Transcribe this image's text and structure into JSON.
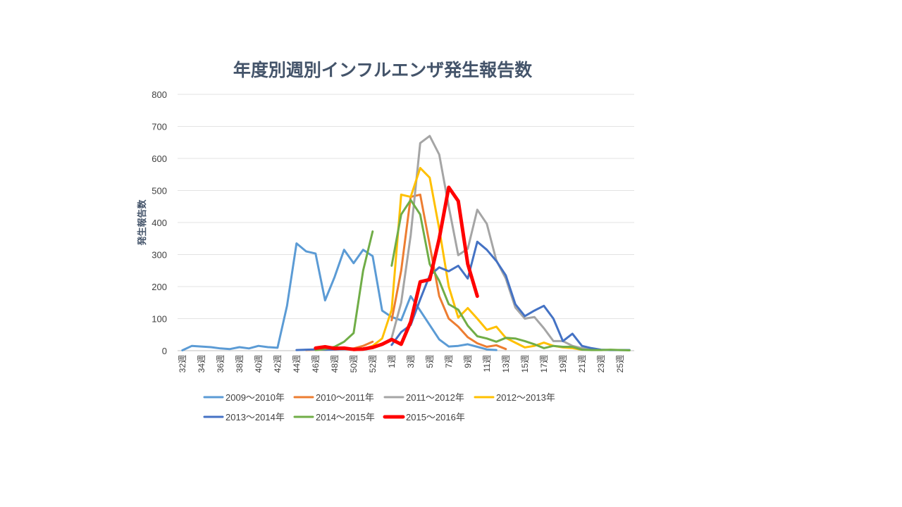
{
  "chart_data": {
    "type": "line",
    "title": "年度別週別インフルエンザ発生報告数",
    "ylabel": "発生報告数",
    "xlabel": "",
    "ylim": [
      0,
      800
    ],
    "yticks": [
      0,
      100,
      200,
      300,
      400,
      500,
      600,
      700,
      800
    ],
    "grid": true,
    "legend_position": "bottom",
    "categories": [
      "32週",
      "33週",
      "34週",
      "35週",
      "36週",
      "37週",
      "38週",
      "39週",
      "40週",
      "41週",
      "42週",
      "43週",
      "44週",
      "45週",
      "46週",
      "47週",
      "48週",
      "49週",
      "50週",
      "51週",
      "52週",
      "53週",
      "1週",
      "2週",
      "3週",
      "4週",
      "5週",
      "6週",
      "7週",
      "8週",
      "9週",
      "10週",
      "11週",
      "12週",
      "13週",
      "14週",
      "15週",
      "16週",
      "17週",
      "18週",
      "19週",
      "20週",
      "21週",
      "22週",
      "23週",
      "24週",
      "25週",
      "26週"
    ],
    "tick_labels": [
      "32週",
      "34週",
      "36週",
      "38週",
      "40週",
      "42週",
      "44週",
      "46週",
      "48週",
      "50週",
      "52週",
      "1週",
      "3週",
      "5週",
      "7週",
      "9週",
      "11週",
      "13週",
      "15週",
      "17週",
      "19週",
      "21週",
      "23週",
      "25週"
    ],
    "series": [
      {
        "name": "2009～2010年",
        "color": "#5b9bd5",
        "width": 3,
        "values": [
          1,
          15,
          13,
          11,
          7,
          5,
          11,
          7,
          15,
          11,
          9,
          140,
          335,
          310,
          303,
          157,
          230,
          315,
          273,
          315,
          295,
          125,
          105,
          95,
          170,
          125,
          80,
          35,
          13,
          15,
          20,
          12,
          4,
          2,
          null,
          null,
          null,
          null,
          null,
          null,
          null,
          null,
          null,
          null,
          null,
          null,
          null,
          null
        ]
      },
      {
        "name": "2010～2011年",
        "color": "#ed7d31",
        "width": 3,
        "values": [
          null,
          null,
          null,
          null,
          null,
          null,
          null,
          null,
          null,
          null,
          null,
          null,
          null,
          2,
          3,
          3,
          4,
          5,
          7,
          15,
          28,
          null,
          95,
          250,
          480,
          487,
          330,
          170,
          100,
          75,
          42,
          23,
          12,
          17,
          5,
          null,
          null,
          null,
          null,
          null,
          null,
          null,
          null,
          null,
          null,
          null,
          null,
          null
        ]
      },
      {
        "name": "2011～2012年",
        "color": "#a5a5a5",
        "width": 3,
        "values": [
          null,
          null,
          null,
          null,
          null,
          null,
          null,
          null,
          null,
          null,
          null,
          null,
          null,
          null,
          null,
          null,
          null,
          null,
          null,
          null,
          null,
          null,
          40,
          150,
          360,
          648,
          670,
          612,
          450,
          298,
          318,
          440,
          396,
          282,
          225,
          135,
          100,
          105,
          70,
          30,
          30,
          15,
          8,
          3,
          null,
          null,
          null,
          null
        ]
      },
      {
        "name": "2012～2013年",
        "color": "#ffc000",
        "width": 3,
        "values": [
          null,
          null,
          null,
          null,
          null,
          null,
          null,
          null,
          null,
          null,
          null,
          null,
          null,
          null,
          null,
          null,
          null,
          null,
          2,
          5,
          15,
          38,
          128,
          487,
          480,
          570,
          540,
          380,
          200,
          103,
          133,
          100,
          65,
          75,
          40,
          25,
          10,
          15,
          25,
          15,
          10,
          8,
          3,
          null,
          null,
          null,
          null,
          null
        ]
      },
      {
        "name": "2013～2014年",
        "color": "#4472c4",
        "width": 3,
        "values": [
          null,
          null,
          null,
          null,
          null,
          null,
          null,
          null,
          null,
          null,
          null,
          null,
          2,
          3,
          4,
          3,
          4,
          5,
          4,
          5,
          8,
          null,
          18,
          58,
          80,
          160,
          235,
          260,
          248,
          265,
          225,
          340,
          315,
          280,
          235,
          145,
          108,
          125,
          140,
          100,
          30,
          53,
          15,
          8,
          3,
          2,
          2,
          2
        ]
      },
      {
        "name": "2014～2015年",
        "color": "#70ad47",
        "width": 3,
        "values": [
          null,
          null,
          null,
          null,
          null,
          null,
          null,
          null,
          null,
          null,
          null,
          null,
          null,
          null,
          2,
          5,
          12,
          28,
          55,
          250,
          372,
          null,
          265,
          425,
          470,
          425,
          270,
          218,
          145,
          128,
          78,
          45,
          38,
          28,
          40,
          38,
          30,
          20,
          8,
          15,
          12,
          12,
          3,
          2,
          2,
          3,
          2,
          1
        ]
      },
      {
        "name": "2015～2016年",
        "color": "#ff0000",
        "width": 5,
        "values": [
          null,
          null,
          null,
          null,
          null,
          null,
          null,
          null,
          null,
          null,
          null,
          null,
          null,
          null,
          8,
          12,
          7,
          8,
          4,
          5,
          10,
          20,
          35,
          20,
          90,
          215,
          222,
          350,
          510,
          467,
          270,
          170,
          null,
          null,
          null,
          null,
          null,
          null,
          null,
          null,
          null,
          null,
          null,
          null,
          null,
          null,
          null,
          null
        ]
      }
    ]
  }
}
